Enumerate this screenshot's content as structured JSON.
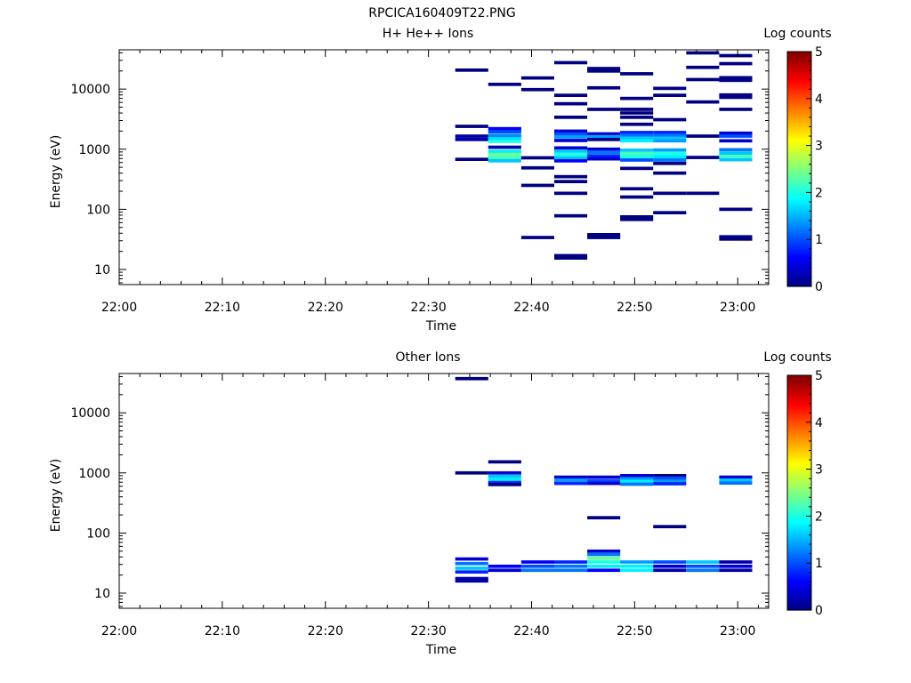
{
  "figure_title": "RPCICA160409T22.PNG",
  "chart_data": [
    {
      "type": "heatmap",
      "title": "H+ He++ Ions",
      "xlabel": "Time",
      "ylabel": "Energy (eV)",
      "x_ticks": [
        "22:00",
        "22:10",
        "22:20",
        "22:30",
        "22:40",
        "22:50",
        "23:00"
      ],
      "xlim": [
        "22:00",
        "23:03"
      ],
      "y_scale": "log",
      "ylim": [
        5.6,
        45000
      ],
      "y_ticks": [
        10,
        100,
        1000,
        10000
      ],
      "y_tick_labels": [
        "10",
        "100",
        "1000",
        "10000"
      ],
      "colorbar": {
        "label": "Log counts",
        "range": [
          0,
          5
        ],
        "ticks": [
          "0",
          "1",
          "2",
          "3",
          "4",
          "5"
        ]
      },
      "columns": [
        {
          "start": "22:32.6",
          "end": "22:35.8",
          "cells": [
            [
              20700,
              0
            ],
            [
              2400,
              0
            ],
            [
              1650,
              0.2
            ],
            [
              1450,
              0.2
            ],
            [
              680,
              0
            ]
          ]
        },
        {
          "start": "22:35.8",
          "end": "22:39.0",
          "cells": [
            [
              12000,
              0
            ],
            [
              2200,
              0.6
            ],
            [
              1950,
              1.0
            ],
            [
              1700,
              1.3
            ],
            [
              1500,
              1.7
            ],
            [
              1350,
              2.0
            ],
            [
              1080,
              0.2
            ],
            [
              920,
              1.8
            ],
            [
              820,
              2.4
            ],
            [
              720,
              2.2
            ],
            [
              640,
              1.6
            ]
          ]
        },
        {
          "start": "22:39.0",
          "end": "22:42.2",
          "cells": [
            [
              15300,
              0
            ],
            [
              9800,
              0
            ],
            [
              720,
              0
            ],
            [
              490,
              0
            ],
            [
              250,
              0
            ],
            [
              34,
              0
            ]
          ]
        },
        {
          "start": "22:42.2",
          "end": "22:45.4",
          "cells": [
            [
              27500,
              0
            ],
            [
              7900,
              0
            ],
            [
              5700,
              0
            ],
            [
              3400,
              0
            ],
            [
              2000,
              0.4
            ],
            [
              1800,
              1.0
            ],
            [
              1600,
              1.4
            ],
            [
              1400,
              0.4
            ],
            [
              1050,
              0.4
            ],
            [
              930,
              1.6
            ],
            [
              820,
              2.0
            ],
            [
              720,
              1.6
            ],
            [
              640,
              0.6
            ],
            [
              350,
              0
            ],
            [
              290,
              0
            ],
            [
              185,
              0
            ],
            [
              78,
              0
            ],
            [
              17,
              0
            ],
            [
              15.5,
              0
            ]
          ]
        },
        {
          "start": "22:45.4",
          "end": "22:48.6",
          "cells": [
            [
              22000,
              0
            ],
            [
              20000,
              0
            ],
            [
              10500,
              0
            ],
            [
              4600,
              0
            ],
            [
              1800,
              0.4
            ],
            [
              1620,
              1.4
            ],
            [
              1450,
              0
            ],
            [
              1000,
              0.4
            ],
            [
              880,
              1.2
            ],
            [
              770,
              0.8
            ],
            [
              690,
              0.4
            ],
            [
              38,
              0
            ],
            [
              34,
              0
            ]
          ]
        },
        {
          "start": "22:48.6",
          "end": "22:51.8",
          "cells": [
            [
              18000,
              0
            ],
            [
              7000,
              0
            ],
            [
              4600,
              0
            ],
            [
              4000,
              0
            ],
            [
              3400,
              0
            ],
            [
              2600,
              0
            ],
            [
              1900,
              0.8
            ],
            [
              1700,
              1.2
            ],
            [
              1520,
              1.6
            ],
            [
              1380,
              1.8
            ],
            [
              960,
              1.6
            ],
            [
              850,
              2.2
            ],
            [
              750,
              2.0
            ],
            [
              660,
              1.0
            ],
            [
              480,
              0
            ],
            [
              220,
              0
            ],
            [
              160,
              0
            ],
            [
              75,
              0
            ],
            [
              68,
              0
            ]
          ]
        },
        {
          "start": "22:51.8",
          "end": "22:55.0",
          "cells": [
            [
              10300,
              0
            ],
            [
              7900,
              0
            ],
            [
              3100,
              0
            ],
            [
              1900,
              0.8
            ],
            [
              1700,
              1.2
            ],
            [
              1520,
              1.6
            ],
            [
              1380,
              1.4
            ],
            [
              970,
              1.4
            ],
            [
              850,
              2.0
            ],
            [
              750,
              1.8
            ],
            [
              660,
              1.2
            ],
            [
              580,
              0
            ],
            [
              400,
              0
            ],
            [
              185,
              0
            ],
            [
              88,
              0
            ]
          ]
        },
        {
          "start": "22:55.0",
          "end": "22:58.2",
          "cells": [
            [
              40000,
              0
            ],
            [
              23000,
              0
            ],
            [
              14400,
              0
            ],
            [
              6100,
              0
            ],
            [
              1650,
              0
            ],
            [
              730,
              0
            ],
            [
              185,
              0
            ]
          ]
        },
        {
          "start": "22:58.2",
          "end": "23:01.4",
          "cells": [
            [
              36000,
              0
            ],
            [
              26500,
              0
            ],
            [
              15500,
              0
            ],
            [
              14000,
              0
            ],
            [
              8000,
              0
            ],
            [
              7300,
              0
            ],
            [
              4600,
              0
            ],
            [
              1850,
              0.4
            ],
            [
              1650,
              1.0
            ],
            [
              1380,
              0.4
            ],
            [
              980,
              1.2
            ],
            [
              860,
              1.6
            ],
            [
              760,
              2.2
            ],
            [
              670,
              1.6
            ],
            [
              100,
              0
            ],
            [
              35,
              0
            ],
            [
              32,
              0
            ]
          ]
        }
      ]
    },
    {
      "type": "heatmap",
      "title": "Other Ions",
      "xlabel": "Time",
      "ylabel": "Energy (eV)",
      "x_ticks": [
        "22:00",
        "22:10",
        "22:20",
        "22:30",
        "22:40",
        "22:50",
        "23:00"
      ],
      "xlim": [
        "22:00",
        "23:03"
      ],
      "y_scale": "log",
      "ylim": [
        5.6,
        45000
      ],
      "y_ticks": [
        10,
        100,
        1000,
        10000
      ],
      "y_tick_labels": [
        "10",
        "100",
        "1000",
        "10000"
      ],
      "colorbar": {
        "label": "Log counts",
        "range": [
          0,
          5
        ],
        "ticks": [
          "0",
          "1",
          "2",
          "3",
          "4",
          "5"
        ]
      },
      "columns": [
        {
          "start": "22:32.6",
          "end": "22:35.8",
          "cells": [
            [
              37000,
              0
            ],
            [
              1000,
              0
            ],
            [
              37,
              0.4
            ],
            [
              31,
              1.2
            ],
            [
              26,
              1.6
            ],
            [
              22.5,
              0.8
            ],
            [
              17.5,
              0.2
            ],
            [
              16,
              0.2
            ]
          ]
        },
        {
          "start": "22:35.8",
          "end": "22:39.0",
          "cells": [
            [
              1530,
              0
            ],
            [
              1000,
              0.4
            ],
            [
              880,
              1.6
            ],
            [
              780,
              1.8
            ],
            [
              690,
              0.8
            ],
            [
              640,
              0
            ],
            [
              28,
              0.6
            ],
            [
              24,
              0.4
            ]
          ]
        },
        {
          "start": "22:39.0",
          "end": "22:42.2",
          "cells": [
            [
              33,
              0.6
            ],
            [
              28,
              1.0
            ],
            [
              24,
              1.2
            ]
          ]
        },
        {
          "start": "22:42.2",
          "end": "22:45.4",
          "cells": [
            [
              850,
              0.4
            ],
            [
              760,
              1.4
            ],
            [
              670,
              0.8
            ],
            [
              33,
              0.8
            ],
            [
              28,
              1.2
            ],
            [
              24,
              1.2
            ]
          ]
        },
        {
          "start": "22:45.4",
          "end": "22:48.6",
          "cells": [
            [
              850,
              0.4
            ],
            [
              740,
              1.0
            ],
            [
              670,
              0.4
            ],
            [
              180,
              0
            ],
            [
              50,
              0.4
            ],
            [
              44,
              1.2
            ],
            [
              38,
              2.4
            ],
            [
              33,
              2.0
            ],
            [
              28,
              1.8
            ],
            [
              24,
              0.6
            ]
          ]
        },
        {
          "start": "22:48.6",
          "end": "22:51.8",
          "cells": [
            [
              900,
              0.4
            ],
            [
              800,
              1.4
            ],
            [
              720,
              1.8
            ],
            [
              650,
              1.2
            ],
            [
              33,
              1.4
            ],
            [
              28,
              1.8
            ],
            [
              24,
              1.8
            ]
          ]
        },
        {
          "start": "22:51.8",
          "end": "22:55.0",
          "cells": [
            [
              900,
              0
            ],
            [
              820,
              1.0
            ],
            [
              730,
              1.4
            ],
            [
              660,
              0.8
            ],
            [
              128,
              0
            ],
            [
              33,
              1.0
            ],
            [
              28,
              0.4
            ],
            [
              24,
              0.2
            ]
          ]
        },
        {
          "start": "22:55.0",
          "end": "22:58.2",
          "cells": [
            [
              33,
              1.6
            ],
            [
              28,
              1.0
            ],
            [
              24,
              1.2
            ]
          ]
        },
        {
          "start": "22:58.2",
          "end": "23:01.4",
          "cells": [
            [
              850,
              0.4
            ],
            [
              760,
              1.6
            ],
            [
              680,
              1.2
            ],
            [
              33,
              0.2
            ],
            [
              28,
              0.4
            ],
            [
              24,
              0.2
            ]
          ]
        }
      ]
    }
  ]
}
